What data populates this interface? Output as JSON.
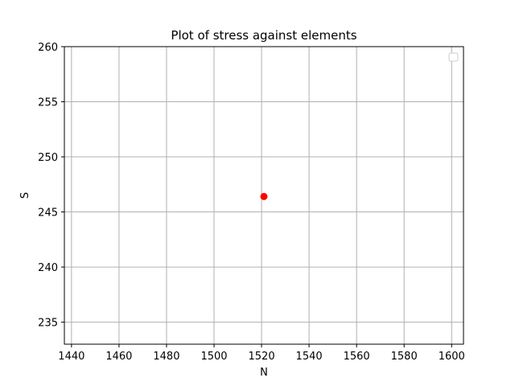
{
  "chart_data": {
    "type": "scatter",
    "title": "Plot of stress against elements",
    "xlabel": "N",
    "ylabel": "S",
    "xlim": [
      1437,
      1605
    ],
    "ylim": [
      233,
      260
    ],
    "x_ticks": [
      1440,
      1460,
      1480,
      1500,
      1520,
      1540,
      1560,
      1580,
      1600
    ],
    "y_ticks": [
      235,
      240,
      245,
      250,
      255,
      260
    ],
    "grid": true,
    "legend": {
      "placement": "top-right",
      "entries": []
    },
    "series": [
      {
        "color": "#ff0000",
        "marker": "circle",
        "points": [
          {
            "x": 1521,
            "y": 246.4
          }
        ]
      }
    ]
  }
}
